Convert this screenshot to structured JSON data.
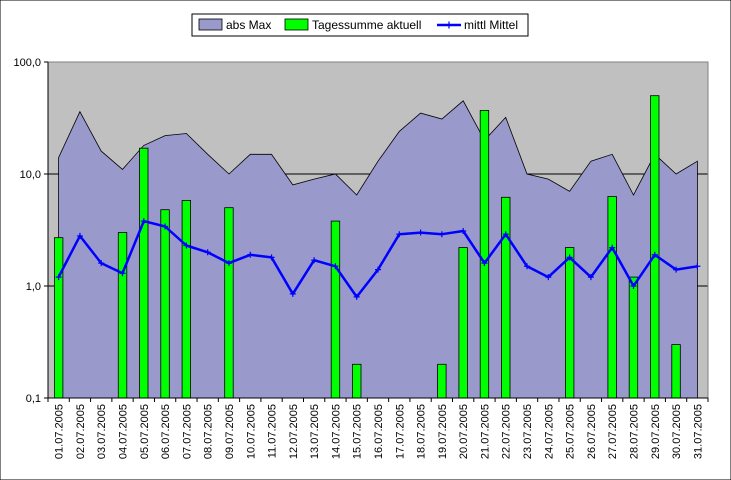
{
  "chart_data": {
    "type": "bar",
    "scale": "log",
    "ylim": [
      0.1,
      100
    ],
    "y_ticks": [
      "0,1",
      "1,0",
      "10,0",
      "100,0"
    ],
    "grid": true,
    "legend_position": "top",
    "colors": {
      "plot_background": "#c0c0c0",
      "area_fill": "#9999cc",
      "bar_fill": "#00ff00",
      "line": "#0000ff"
    },
    "categories": [
      "01.07.2005",
      "02.07.2005",
      "03.07.2005",
      "04.07.2005",
      "05.07.2005",
      "06.07.2005",
      "07.07.2005",
      "08.07.2005",
      "09.07.2005",
      "10.07.2005",
      "11.07.2005",
      "12.07.2005",
      "13.07.2005",
      "14.07.2005",
      "15.07.2005",
      "16.07.2005",
      "17.07.2005",
      "18.07.2005",
      "19.07.2005",
      "20.07.2005",
      "21.07.2005",
      "22.07.2005",
      "23.07.2005",
      "24.07.2005",
      "25.07.2005",
      "26.07.2005",
      "27.07.2005",
      "28.07.2005",
      "29.07.2005",
      "30.07.2005",
      "31.07.2005"
    ],
    "series": [
      {
        "name": "abs Max",
        "kind": "area",
        "values": [
          14,
          36,
          16,
          11,
          18,
          22,
          23,
          15,
          10,
          15,
          15,
          8,
          9,
          10,
          6.5,
          13,
          24,
          35,
          31,
          45,
          20,
          32,
          10,
          9,
          7,
          13,
          15,
          6.5,
          15,
          10,
          13
        ]
      },
      {
        "name": "Tagessumme aktuell",
        "kind": "bar",
        "values": [
          2.7,
          null,
          null,
          3,
          17,
          4.8,
          5.8,
          null,
          5,
          null,
          null,
          null,
          null,
          3.8,
          0.2,
          null,
          null,
          null,
          0.2,
          2.2,
          37,
          6.2,
          null,
          null,
          2.2,
          null,
          6.3,
          1.2,
          50,
          0.3,
          null
        ]
      },
      {
        "name": "mittl Mittel",
        "kind": "line",
        "values": [
          1.2,
          2.8,
          1.6,
          1.3,
          3.8,
          3.4,
          2.3,
          2,
          1.6,
          1.9,
          1.8,
          0.85,
          1.7,
          1.5,
          0.8,
          1.4,
          2.9,
          3,
          2.9,
          3.1,
          1.6,
          2.9,
          1.5,
          1.2,
          1.8,
          1.2,
          2.2,
          1,
          1.9,
          1.4,
          1.5
        ]
      }
    ]
  }
}
